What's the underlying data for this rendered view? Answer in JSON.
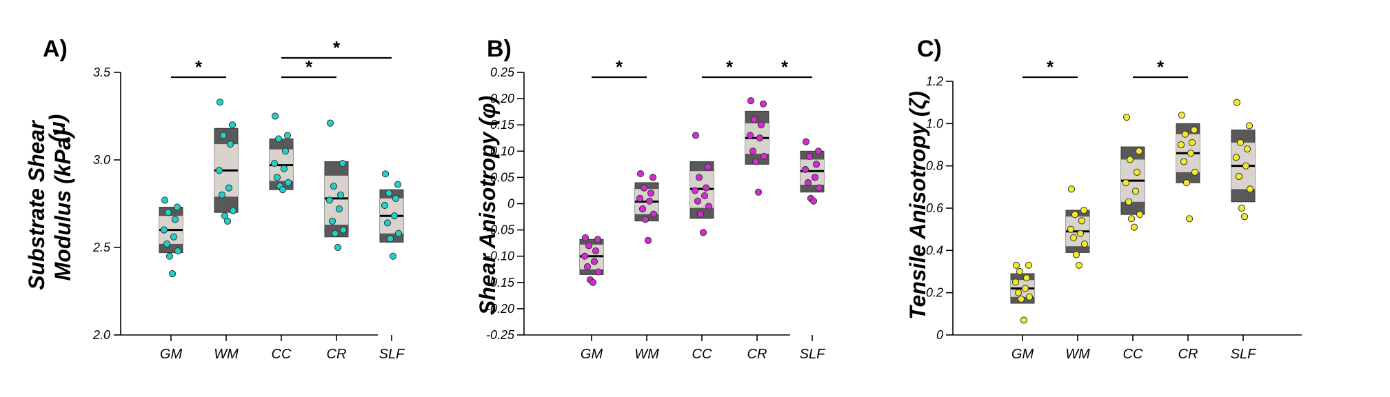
{
  "chart_data": [
    {
      "type": "box",
      "panel": "A)",
      "ylabel_lines": [
        "Substrate Shear",
        "Modulus (kPa)"
      ],
      "ylabel_symbol": "(μ)",
      "ylim": [
        2.0,
        3.5
      ],
      "yticks": [
        2.0,
        2.5,
        3.0,
        3.5
      ],
      "ytick_labels": [
        "2.0",
        "2.5",
        "3.0",
        "3.5"
      ],
      "categories": [
        "GM",
        "WM",
        "CC",
        "CR",
        "SLF"
      ],
      "point_color": "#1fd1c8",
      "boxes": [
        {
          "outer": [
            2.47,
            2.73
          ],
          "inner": [
            2.52,
            2.68
          ],
          "median": 2.6
        },
        {
          "outer": [
            2.7,
            3.18
          ],
          "inner": [
            2.79,
            3.09
          ],
          "median": 2.94
        },
        {
          "outer": [
            2.83,
            3.12
          ],
          "inner": [
            2.88,
            3.06
          ],
          "median": 2.97
        },
        {
          "outer": [
            2.56,
            2.99
          ],
          "inner": [
            2.63,
            2.91
          ],
          "median": 2.78
        },
        {
          "outer": [
            2.53,
            2.83
          ],
          "inner": [
            2.58,
            2.78
          ],
          "median": 2.68
        }
      ],
      "points": [
        [
          2.77,
          2.73,
          2.7,
          2.66,
          2.6,
          2.56,
          2.52,
          2.48,
          2.45,
          2.35
        ],
        [
          3.33,
          3.2,
          3.14,
          3.09,
          2.94,
          2.84,
          2.8,
          2.71,
          2.68,
          2.65
        ],
        [
          3.25,
          3.14,
          3.12,
          3.05,
          2.98,
          2.95,
          2.9,
          2.87,
          2.85,
          2.83
        ],
        [
          3.21,
          2.98,
          2.85,
          2.8,
          2.77,
          2.72,
          2.65,
          2.6,
          2.58,
          2.5
        ],
        [
          2.92,
          2.86,
          2.81,
          2.78,
          2.74,
          2.68,
          2.64,
          2.58,
          2.55,
          2.45
        ]
      ],
      "significance": [
        {
          "from": "GM",
          "to": "WM",
          "level": 0,
          "label": "*"
        },
        {
          "from": "CC",
          "to": "CR",
          "level": 0,
          "label": "*"
        },
        {
          "from": "CC",
          "to": "SLF",
          "level": 1,
          "label": "*"
        }
      ]
    },
    {
      "type": "box",
      "panel": "B)",
      "ylabel_lines": [
        "Shear Anisotropy (φ)"
      ],
      "ylim": [
        -0.25,
        0.25
      ],
      "yticks": [
        -0.25,
        -0.2,
        -0.15,
        -0.1,
        -0.05,
        0,
        0.05,
        0.1,
        0.15,
        0.2,
        0.25
      ],
      "ytick_labels": [
        "-0.25",
        "-0.20",
        "-0.15",
        "-0.10",
        "-0.05",
        "0",
        "0.05",
        "0.10",
        "0.15",
        "0.20",
        "0.25"
      ],
      "categories": [
        "GM",
        "WM",
        "CC",
        "CR",
        "SLF"
      ],
      "point_color": "#d42bd4",
      "boxes": [
        {
          "outer": [
            -0.135,
            -0.068
          ],
          "inner": [
            -0.125,
            -0.078
          ],
          "median": -0.1
        },
        {
          "outer": [
            -0.033,
            0.04
          ],
          "inner": [
            -0.02,
            0.028
          ],
          "median": 0.004
        },
        {
          "outer": [
            -0.028,
            0.08
          ],
          "inner": [
            -0.008,
            0.062
          ],
          "median": 0.028
        },
        {
          "outer": [
            0.075,
            0.176
          ],
          "inner": [
            0.095,
            0.153
          ],
          "median": 0.125
        },
        {
          "outer": [
            0.022,
            0.1
          ],
          "inner": [
            0.036,
            0.084
          ],
          "median": 0.062
        }
      ],
      "points": [
        [
          -0.065,
          -0.068,
          -0.08,
          -0.09,
          -0.1,
          -0.11,
          -0.12,
          -0.13,
          -0.145,
          -0.15
        ],
        [
          0.057,
          0.05,
          0.03,
          0.02,
          0.01,
          0.005,
          -0.01,
          -0.02,
          -0.03,
          -0.07
        ],
        [
          0.13,
          0.07,
          0.05,
          0.03,
          0.025,
          0.015,
          0.005,
          -0.005,
          -0.02,
          -0.055
        ],
        [
          0.196,
          0.19,
          0.16,
          0.15,
          0.13,
          0.125,
          0.1,
          0.09,
          0.08,
          0.022
        ],
        [
          0.118,
          0.1,
          0.09,
          0.075,
          0.065,
          0.05,
          0.04,
          0.03,
          0.01,
          0.005
        ]
      ],
      "significance": [
        {
          "from": "GM",
          "to": "WM",
          "level": 0,
          "label": "*"
        },
        {
          "from": "CC",
          "to": "CR",
          "level": 0,
          "label": "*"
        },
        {
          "from": "CR",
          "to": "SLF",
          "level": 0,
          "label": "*"
        }
      ]
    },
    {
      "type": "box",
      "panel": "C)",
      "ylabel_lines": [
        "Tensile Anisotropy (ζ)"
      ],
      "ylim": [
        0,
        1.2
      ],
      "yticks": [
        0,
        0.2,
        0.4,
        0.6,
        0.8,
        1.0,
        1.2
      ],
      "ytick_labels": [
        "0",
        "0.2",
        "0.4",
        "0.6",
        "0.8",
        "1.0",
        "1.2"
      ],
      "categories": [
        "GM",
        "WM",
        "CC",
        "CR",
        "SLF"
      ],
      "point_color": "#f2ea2a",
      "boxes": [
        {
          "outer": [
            0.15,
            0.29
          ],
          "inner": [
            0.18,
            0.26
          ],
          "median": 0.22
        },
        {
          "outer": [
            0.39,
            0.59
          ],
          "inner": [
            0.42,
            0.56
          ],
          "median": 0.49
        },
        {
          "outer": [
            0.57,
            0.89
          ],
          "inner": [
            0.63,
            0.83
          ],
          "median": 0.73
        },
        {
          "outer": [
            0.72,
            1.0
          ],
          "inner": [
            0.77,
            0.95
          ],
          "median": 0.86
        },
        {
          "outer": [
            0.63,
            0.97
          ],
          "inner": [
            0.69,
            0.91
          ],
          "median": 0.8
        }
      ],
      "points": [
        [
          0.33,
          0.33,
          0.3,
          0.27,
          0.25,
          0.22,
          0.2,
          0.18,
          0.17,
          0.07
        ],
        [
          0.69,
          0.59,
          0.57,
          0.54,
          0.5,
          0.48,
          0.46,
          0.43,
          0.38,
          0.33
        ],
        [
          1.03,
          0.87,
          0.83,
          0.77,
          0.72,
          0.68,
          0.63,
          0.57,
          0.55,
          0.51
        ],
        [
          1.04,
          0.97,
          0.95,
          0.91,
          0.9,
          0.86,
          0.82,
          0.77,
          0.72,
          0.55
        ],
        [
          1.1,
          0.99,
          0.91,
          0.88,
          0.84,
          0.8,
          0.75,
          0.69,
          0.6,
          0.56
        ]
      ],
      "significance": [
        {
          "from": "GM",
          "to": "WM",
          "level": 0,
          "label": "*"
        },
        {
          "from": "CC",
          "to": "CR",
          "level": 0,
          "label": "*"
        }
      ]
    }
  ]
}
